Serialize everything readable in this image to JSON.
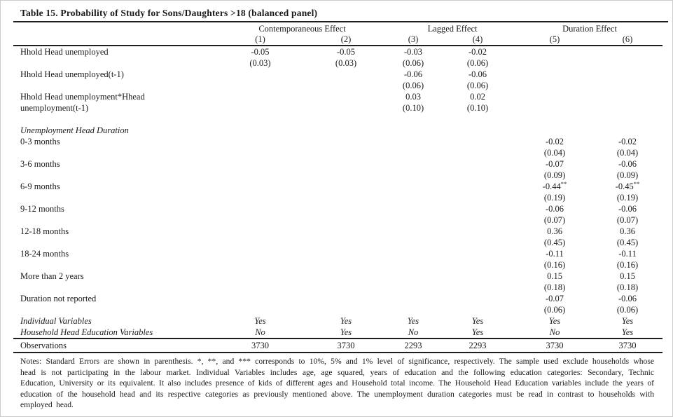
{
  "title": "Table 15. Probability of Study for Sons/Daughters >18 (balanced panel)",
  "table": {
    "groups": [
      {
        "label": "Contemporaneous Effect"
      },
      {
        "label": "Lagged Effect"
      },
      {
        "label": "Duration Effect"
      }
    ],
    "col_headers": [
      "(1)",
      "(2)",
      "(3)",
      "(4)",
      "(5)",
      "(6)"
    ],
    "blocks": [
      {
        "type": "var",
        "label": "Hhold Head unemployed",
        "label2": "",
        "values": [
          "-0.05",
          "-0.05",
          "-0.03",
          "-0.02",
          "",
          ""
        ],
        "ses": [
          "(0.03)",
          "(0.03)",
          "(0.06)",
          "(0.06)",
          "",
          ""
        ]
      },
      {
        "type": "var",
        "label": "Hhold Head unemployed(t-1)",
        "label2": "",
        "values": [
          "",
          "",
          "-0.06",
          "-0.06",
          "",
          ""
        ],
        "ses": [
          "",
          "",
          "(0.06)",
          "(0.06)",
          "",
          ""
        ]
      },
      {
        "type": "var",
        "label": "Hhold Head unemployment*Hhead",
        "label2": "unemployment(t-1)",
        "values": [
          "",
          "",
          "0.03",
          "0.02",
          "",
          ""
        ],
        "ses": [
          "",
          "",
          "(0.10)",
          "(0.10)",
          "",
          ""
        ]
      },
      {
        "type": "spacer"
      },
      {
        "type": "section",
        "label": "Unemployment Head Duration"
      },
      {
        "type": "var",
        "indent": true,
        "label": "0-3 months",
        "label2": "",
        "values": [
          "",
          "",
          "",
          "",
          "-0.02",
          "-0.02"
        ],
        "ses": [
          "",
          "",
          "",
          "",
          "(0.04)",
          "(0.04)"
        ]
      },
      {
        "type": "var",
        "indent": true,
        "label": "3-6 months",
        "label2": "",
        "values": [
          "",
          "",
          "",
          "",
          "-0.07",
          "-0.06"
        ],
        "ses": [
          "",
          "",
          "",
          "",
          "(0.09)",
          "(0.09)"
        ]
      },
      {
        "type": "var",
        "indent": true,
        "label": "6-9 months",
        "label2": "",
        "values": [
          "",
          "",
          "",
          "",
          "-0.44**",
          "-0.45**"
        ],
        "ses": [
          "",
          "",
          "",
          "",
          "(0.19)",
          "(0.19)"
        ]
      },
      {
        "type": "var",
        "indent": true,
        "label": "9-12 months",
        "label2": "",
        "values": [
          "",
          "",
          "",
          "",
          "-0.06",
          "-0.06"
        ],
        "ses": [
          "",
          "",
          "",
          "",
          "(0.07)",
          "(0.07)"
        ]
      },
      {
        "type": "var",
        "indent": true,
        "label": "12-18 months",
        "label2": "",
        "values": [
          "",
          "",
          "",
          "",
          "0.36",
          "0.36"
        ],
        "ses": [
          "",
          "",
          "",
          "",
          "(0.45)",
          "(0.45)"
        ]
      },
      {
        "type": "var",
        "indent": true,
        "label": "18-24 months",
        "label2": "",
        "values": [
          "",
          "",
          "",
          "",
          "-0.11",
          "-0.11"
        ],
        "ses": [
          "",
          "",
          "",
          "",
          "(0.16)",
          "(0.16)"
        ]
      },
      {
        "type": "var",
        "indent": true,
        "label": "More than 2 years",
        "label2": "",
        "values": [
          "",
          "",
          "",
          "",
          "0.15",
          "0.15"
        ],
        "ses": [
          "",
          "",
          "",
          "",
          "(0.18)",
          "(0.18)"
        ]
      },
      {
        "type": "var",
        "indent": true,
        "label": "Duration not reported",
        "label2": "",
        "values": [
          "",
          "",
          "",
          "",
          "-0.07",
          "-0.06"
        ],
        "ses": [
          "",
          "",
          "",
          "",
          "(0.06)",
          "(0.06)"
        ]
      },
      {
        "type": "flags",
        "label": "Individual Variables",
        "values": [
          "Yes",
          "Yes",
          "Yes",
          "Yes",
          "Yes",
          "Yes"
        ]
      },
      {
        "type": "flags",
        "label": "Household Head Education Variables",
        "values": [
          "No",
          "Yes",
          "No",
          "Yes",
          "No",
          "Yes"
        ]
      },
      {
        "type": "obs",
        "label": "Observations",
        "values": [
          "3730",
          "3730",
          "2293",
          "2293",
          "3730",
          "3730"
        ]
      }
    ]
  },
  "notes": "Notes: Standard Errors are shown in parenthesis. *, **, and *** corresponds to 10%, 5% and 1% level of significance, respectively. The sample used exclude households whose head is not participating in the labour market. Individual Variables includes age, age squared, years of education and the following education categories: Secondary, Technic Education, University or its equivalent. It also includes presence of kids of different ages and Household total income. The Household Head Education variables include the years of education of the household head and its respective categories as previously mentioned above. The unemployment duration categories must be read in contrast to households with employed head."
}
